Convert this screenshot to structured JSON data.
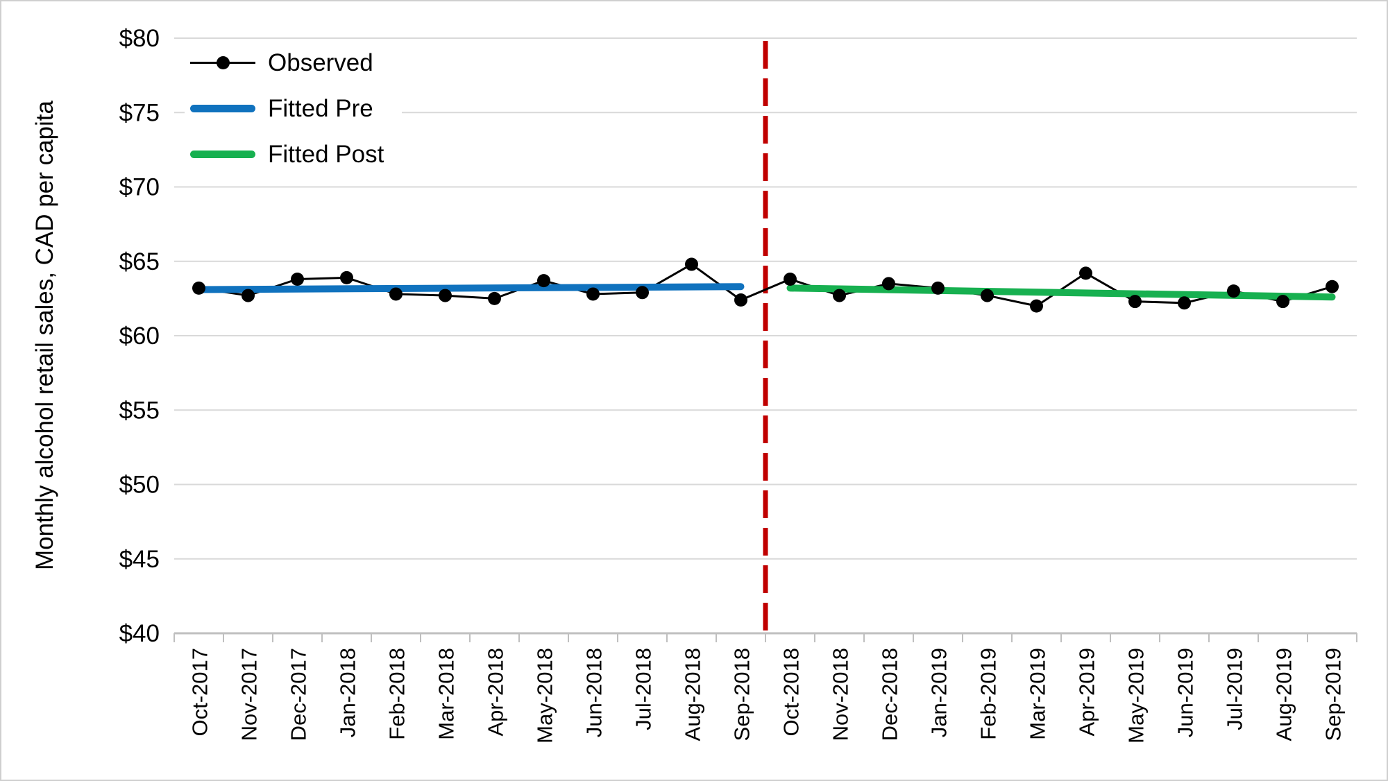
{
  "chart_data": {
    "type": "line",
    "title": "",
    "xlabel": "",
    "ylabel": "Monthly alcohol retail sales, CAD per capita",
    "ylim": [
      40,
      80
    ],
    "ytick_interval": 5,
    "ytick_prefix": "$",
    "grid": "horizontal",
    "legend_position": "top-left-inside",
    "categories": [
      "Oct-2017",
      "Nov-2017",
      "Dec-2017",
      "Jan-2018",
      "Feb-2018",
      "Mar-2018",
      "Apr-2018",
      "May-2018",
      "Jun-2018",
      "Jul-2018",
      "Aug-2018",
      "Sep-2018",
      "Oct-2018",
      "Nov-2018",
      "Dec-2018",
      "Jan-2019",
      "Feb-2019",
      "Mar-2019",
      "Apr-2019",
      "May-2019",
      "Jun-2019",
      "Jul-2019",
      "Aug-2019",
      "Sep-2019"
    ],
    "series": [
      {
        "name": "Observed",
        "type": "line-with-markers",
        "color": "#000000",
        "marker": "circle",
        "values": [
          63.2,
          62.7,
          63.8,
          63.9,
          62.8,
          62.7,
          62.5,
          63.7,
          62.8,
          62.9,
          64.8,
          62.4,
          63.8,
          62.7,
          63.5,
          63.2,
          62.7,
          62.0,
          64.2,
          62.3,
          62.2,
          63.0,
          62.3,
          63.3
        ]
      },
      {
        "name": "Fitted Pre",
        "type": "fitted-segment",
        "color": "#1072BE",
        "start_index": 0,
        "end_index": 11,
        "start_value": 63.1,
        "end_value": 63.3
      },
      {
        "name": "Fitted Post",
        "type": "fitted-segment",
        "color": "#17B050",
        "start_index": 12,
        "end_index": 23,
        "start_value": 63.2,
        "end_value": 62.6
      }
    ],
    "intervention_line": {
      "orientation": "vertical",
      "position_between": [
        "Sep-2018",
        "Oct-2018"
      ],
      "style": "dashed",
      "color": "#C00000"
    }
  },
  "legend": {
    "items": [
      {
        "label": "Observed",
        "swatch": "line-marker",
        "color": "#000000"
      },
      {
        "label": "Fitted Pre",
        "swatch": "thick-line",
        "color": "#1072BE"
      },
      {
        "label": "Fitted Post",
        "swatch": "thick-line",
        "color": "#17B050"
      }
    ]
  },
  "style_colors": {
    "gridline": "#D9D9D9",
    "axis_line": "#BFBFBF",
    "text": "#000000",
    "background": "#FFFFFF"
  }
}
